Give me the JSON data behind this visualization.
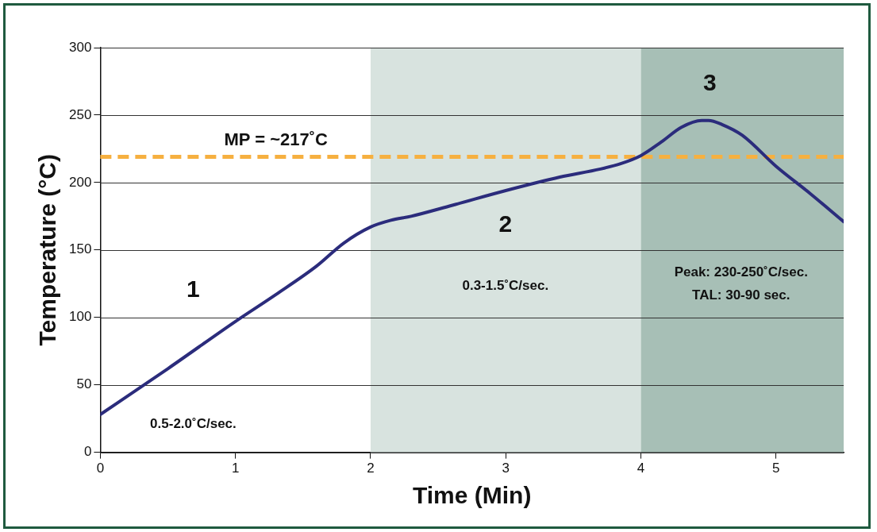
{
  "chart_data": {
    "type": "line",
    "xlabel": "Time (Min)",
    "ylabel": "Temperature (°C)",
    "x": [
      0,
      0.5,
      1,
      1.3,
      1.6,
      1.8,
      2,
      2.15,
      2.3,
      2.6,
      3,
      3.4,
      3.7,
      3.85,
      4,
      4.15,
      4.3,
      4.45,
      4.5,
      4.6,
      4.75,
      5,
      5.25,
      5.5
    ],
    "series": [
      {
        "color": "#2b2c7c",
        "values": [
          28,
          62,
          97,
          117,
          138,
          155,
          167,
          172,
          175,
          183,
          194,
          204,
          210,
          214,
          220,
          230,
          241,
          246,
          246,
          243,
          235,
          212,
          192,
          171
        ]
      }
    ],
    "xlim": [
      0,
      5.5
    ],
    "xticks": [
      0,
      1,
      2,
      3,
      4,
      5
    ],
    "ylim": [
      0,
      300
    ],
    "yticks": [
      0,
      50,
      100,
      150,
      200,
      250,
      300
    ],
    "grid": "y",
    "legend": false,
    "marker": "none",
    "line_style": "solid",
    "bands": [
      {
        "axis": "x",
        "from": 2,
        "to": 4,
        "color": "#d8e3df"
      },
      {
        "axis": "x",
        "from": 4,
        "to": 5.5,
        "color": "#a7bfb6"
      }
    ],
    "ref_lines": [
      {
        "axis": "y",
        "value": 219,
        "label": "MP = ~217˚C",
        "color": "#f6b040",
        "line_style": "dashed"
      }
    ],
    "annotations": [
      "1",
      "0.5-2.0˚C/sec.",
      "2",
      "0.3-1.5˚C/sec.",
      "3",
      "Peak: 230-250˚C/sec.",
      "TAL: 30-90 sec."
    ]
  }
}
